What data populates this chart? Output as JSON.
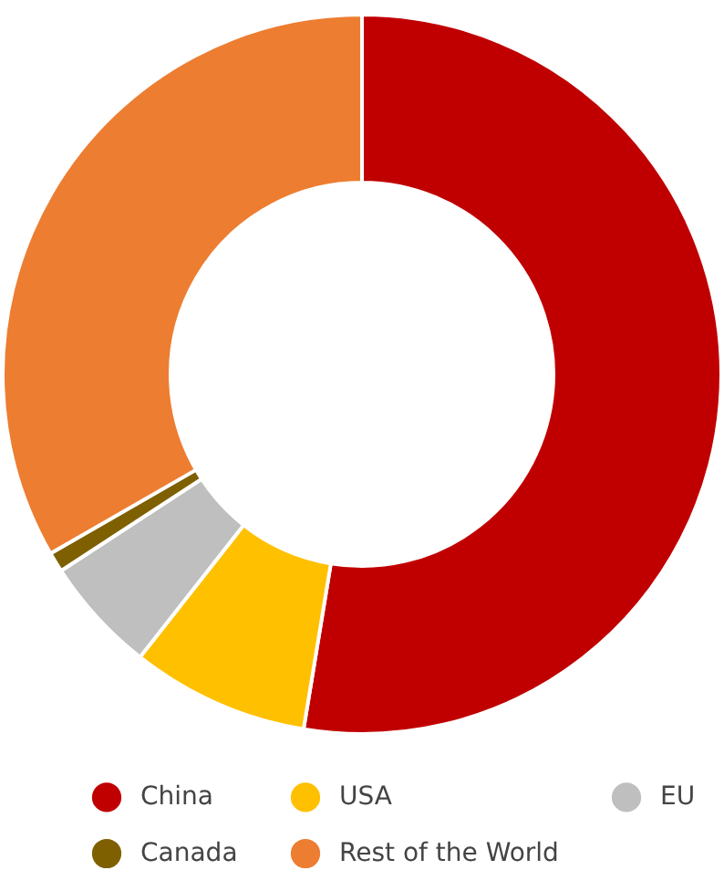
{
  "chart_data": {
    "type": "donut",
    "categories": [
      "China",
      "USA",
      "EU",
      "Canada",
      "Rest of the World"
    ],
    "values": [
      52.6,
      8.0,
      5.2,
      0.9,
      33.3
    ],
    "colors": [
      "#c00000",
      "#ffc000",
      "#bfbfbf",
      "#7f6000",
      "#ed7d31"
    ],
    "legend": "bottom"
  }
}
